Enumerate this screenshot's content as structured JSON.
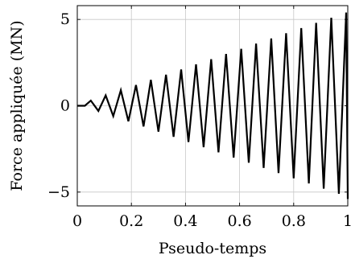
{
  "chart_data": {
    "type": "line",
    "title": "",
    "xlabel": "Pseudo-temps",
    "ylabel": "Force appliquée (MN)",
    "xlim": [
      0,
      1
    ],
    "ylim": [
      -5.8,
      5.8
    ],
    "xticks": [
      0,
      0.2,
      0.4,
      0.6,
      0.8,
      1
    ],
    "xtick_labels": [
      "0",
      "0.2",
      "0.4",
      "0.6",
      "0.8",
      "1"
    ],
    "yticks": [
      -5,
      0,
      5
    ],
    "ytick_labels": [
      "−5",
      "0",
      "5"
    ],
    "grid": true,
    "legend": "none",
    "series": [
      {
        "color": "#000000",
        "x": [
          0,
          0.028,
          0.05,
          0.078,
          0.105,
          0.133,
          0.161,
          0.189,
          0.217,
          0.245,
          0.272,
          0.3,
          0.328,
          0.356,
          0.384,
          0.411,
          0.439,
          0.467,
          0.495,
          0.522,
          0.55,
          0.578,
          0.606,
          0.634,
          0.661,
          0.689,
          0.717,
          0.744,
          0.772,
          0.8,
          0.828,
          0.856,
          0.883,
          0.911,
          0.939,
          0.967,
          0.994,
          1.0
        ],
        "y": [
          0,
          0,
          0.3,
          -0.3,
          0.6,
          -0.6,
          0.9,
          -0.9,
          1.2,
          -1.2,
          1.5,
          -1.5,
          1.8,
          -1.8,
          2.1,
          -2.1,
          2.4,
          -2.4,
          2.7,
          -2.7,
          3.0,
          -3.0,
          3.3,
          -3.3,
          3.6,
          -3.6,
          3.9,
          -3.9,
          4.2,
          -4.2,
          4.5,
          -4.5,
          4.8,
          -4.8,
          5.1,
          -5.1,
          5.4,
          -5.4
        ]
      }
    ]
  }
}
